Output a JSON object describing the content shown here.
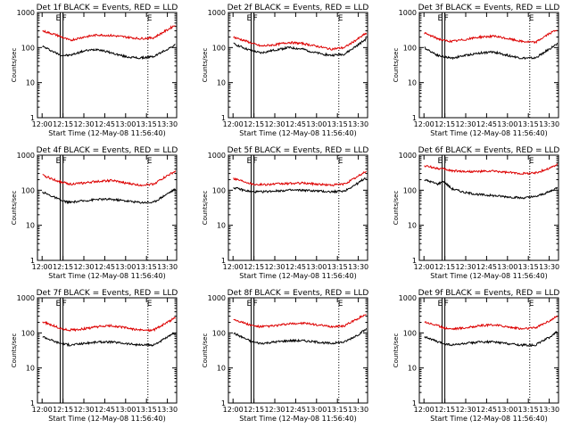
{
  "figure": {
    "xlabel": "Start Time (12-May-08 11:56:40)",
    "ylabel": "Counts/sec",
    "xticks": [
      "12:00",
      "12:15",
      "12:30",
      "12:45",
      "13:00",
      "13:15",
      "13:30"
    ],
    "yticks": [
      "1",
      "10",
      "100",
      "1000"
    ],
    "marker_labels": [
      "E",
      "F",
      "E"
    ],
    "colors": {
      "events": "#000000",
      "lld": "#dd0000"
    }
  },
  "chart_data": [
    {
      "type": "line",
      "title": "Det 1f BLACK = Events, RED = LLD",
      "x": [
        "12:00",
        "12:10",
        "12:14",
        "12:20",
        "12:30",
        "12:40",
        "12:50",
        "13:00",
        "13:10",
        "13:20",
        "13:30",
        "13:36"
      ],
      "x_minutes_unused": true,
      "series": [
        {
          "name": "Events",
          "values": [
            110,
            70,
            60,
            60,
            80,
            90,
            70,
            55,
            50,
            55,
            90,
            120
          ]
        },
        {
          "name": "LLD",
          "values": [
            300,
            230,
            200,
            160,
            200,
            230,
            220,
            200,
            180,
            190,
            320,
            450
          ]
        }
      ],
      "ylim": [
        1,
        1000
      ],
      "yscale": "log",
      "vlines": [
        "12:13",
        "12:15",
        "13:16"
      ]
    },
    {
      "type": "line",
      "title": "Det 2f BLACK = Events, RED = LLD",
      "x": [
        "12:00",
        "12:10",
        "12:14",
        "12:20",
        "12:30",
        "12:40",
        "12:50",
        "13:00",
        "13:10",
        "13:20",
        "13:30",
        "13:36"
      ],
      "series": [
        {
          "name": "Events",
          "values": [
            130,
            90,
            80,
            70,
            85,
            100,
            90,
            70,
            60,
            65,
            120,
            180
          ]
        },
        {
          "name": "LLD",
          "values": [
            200,
            150,
            130,
            110,
            120,
            140,
            130,
            110,
            90,
            100,
            180,
            260
          ]
        }
      ],
      "ylim": [
        1,
        1000
      ],
      "yscale": "log",
      "vlines": [
        "12:13",
        "12:15",
        "13:16"
      ]
    },
    {
      "type": "line",
      "title": "Det 3f BLACK = Events, RED = LLD",
      "x": [
        "12:00",
        "12:10",
        "12:14",
        "12:20",
        "12:30",
        "12:40",
        "12:50",
        "13:00",
        "13:10",
        "13:20",
        "13:30",
        "13:36"
      ],
      "series": [
        {
          "name": "Events",
          "values": [
            100,
            60,
            55,
            50,
            60,
            70,
            75,
            60,
            50,
            50,
            90,
            130
          ]
        },
        {
          "name": "LLD",
          "values": [
            260,
            180,
            160,
            150,
            170,
            200,
            210,
            180,
            150,
            140,
            250,
            330
          ]
        }
      ],
      "ylim": [
        1,
        1000
      ],
      "yscale": "log",
      "vlines": [
        "12:13",
        "12:15",
        "13:16"
      ]
    },
    {
      "type": "line",
      "title": "Det 4f BLACK = Events, RED = LLD",
      "x": [
        "12:00",
        "12:10",
        "12:14",
        "12:20",
        "12:30",
        "12:40",
        "12:50",
        "13:00",
        "13:10",
        "13:20",
        "13:30",
        "13:36"
      ],
      "series": [
        {
          "name": "Events",
          "values": [
            90,
            60,
            50,
            45,
            50,
            55,
            55,
            50,
            45,
            45,
            80,
            110
          ]
        },
        {
          "name": "LLD",
          "values": [
            270,
            190,
            170,
            150,
            160,
            180,
            190,
            160,
            140,
            150,
            260,
            350
          ]
        }
      ],
      "ylim": [
        1,
        1000
      ],
      "yscale": "log",
      "vlines": [
        "12:13",
        "12:15",
        "13:16"
      ]
    },
    {
      "type": "line",
      "title": "Det 5f BLACK = Events, RED = LLD",
      "x": [
        "12:00",
        "12:10",
        "12:14",
        "12:20",
        "12:30",
        "12:40",
        "12:50",
        "13:00",
        "13:10",
        "13:20",
        "13:30",
        "13:36"
      ],
      "series": [
        {
          "name": "Events",
          "values": [
            120,
            95,
            90,
            90,
            95,
            100,
            100,
            95,
            90,
            95,
            160,
            240
          ]
        },
        {
          "name": "LLD",
          "values": [
            220,
            170,
            150,
            145,
            150,
            155,
            160,
            150,
            140,
            150,
            250,
            360
          ]
        }
      ],
      "ylim": [
        1,
        1000
      ],
      "yscale": "log",
      "vlines": [
        "12:13",
        "12:15",
        "13:16"
      ]
    },
    {
      "type": "line",
      "title": "Det 6f BLACK = Events, RED = LLD",
      "x": [
        "12:00",
        "12:10",
        "12:14",
        "12:20",
        "12:30",
        "12:40",
        "12:50",
        "13:00",
        "13:10",
        "13:20",
        "13:30",
        "13:36"
      ],
      "series": [
        {
          "name": "Events",
          "values": [
            200,
            150,
            180,
            110,
            85,
            75,
            70,
            65,
            60,
            65,
            90,
            120
          ]
        },
        {
          "name": "LLD",
          "values": [
            500,
            420,
            400,
            360,
            340,
            340,
            350,
            320,
            300,
            310,
            420,
            550
          ]
        }
      ],
      "ylim": [
        1,
        1000
      ],
      "yscale": "log",
      "vlines": [
        "12:13",
        "12:15",
        "13:16"
      ]
    },
    {
      "type": "line",
      "title": "Det 7f BLACK = Events, RED = LLD",
      "x": [
        "12:00",
        "12:10",
        "12:14",
        "12:20",
        "12:30",
        "12:40",
        "12:50",
        "13:00",
        "13:10",
        "13:20",
        "13:30",
        "13:36"
      ],
      "series": [
        {
          "name": "Events",
          "values": [
            80,
            55,
            50,
            45,
            50,
            55,
            55,
            50,
            45,
            45,
            75,
            100
          ]
        },
        {
          "name": "LLD",
          "values": [
            210,
            150,
            130,
            120,
            130,
            150,
            160,
            140,
            120,
            120,
            200,
            280
          ]
        }
      ],
      "ylim": [
        1,
        1000
      ],
      "yscale": "log",
      "vlines": [
        "12:13",
        "12:15",
        "13:16"
      ]
    },
    {
      "type": "line",
      "title": "Det 8f BLACK = Events, RED = LLD",
      "x": [
        "12:00",
        "12:10",
        "12:14",
        "12:20",
        "12:30",
        "12:40",
        "12:50",
        "13:00",
        "13:10",
        "13:20",
        "13:30",
        "13:36"
      ],
      "series": [
        {
          "name": "Events",
          "values": [
            100,
            65,
            55,
            50,
            55,
            60,
            60,
            55,
            50,
            55,
            90,
            130
          ]
        },
        {
          "name": "LLD",
          "values": [
            250,
            180,
            160,
            150,
            160,
            180,
            190,
            170,
            150,
            160,
            260,
            350
          ]
        }
      ],
      "ylim": [
        1,
        1000
      ],
      "yscale": "log",
      "vlines": [
        "12:13",
        "12:15",
        "13:16"
      ]
    },
    {
      "type": "line",
      "title": "Det 9f BLACK = Events, RED = LLD",
      "x": [
        "12:00",
        "12:10",
        "12:14",
        "12:20",
        "12:30",
        "12:40",
        "12:50",
        "13:00",
        "13:10",
        "13:20",
        "13:30",
        "13:36"
      ],
      "series": [
        {
          "name": "Events",
          "values": [
            80,
            55,
            50,
            45,
            50,
            55,
            55,
            50,
            45,
            45,
            75,
            110
          ]
        },
        {
          "name": "LLD",
          "values": [
            210,
            160,
            140,
            130,
            140,
            160,
            170,
            150,
            130,
            140,
            220,
            300
          ]
        }
      ],
      "ylim": [
        1,
        1000
      ],
      "yscale": "log",
      "vlines": [
        "12:13",
        "12:15",
        "13:16"
      ]
    }
  ]
}
